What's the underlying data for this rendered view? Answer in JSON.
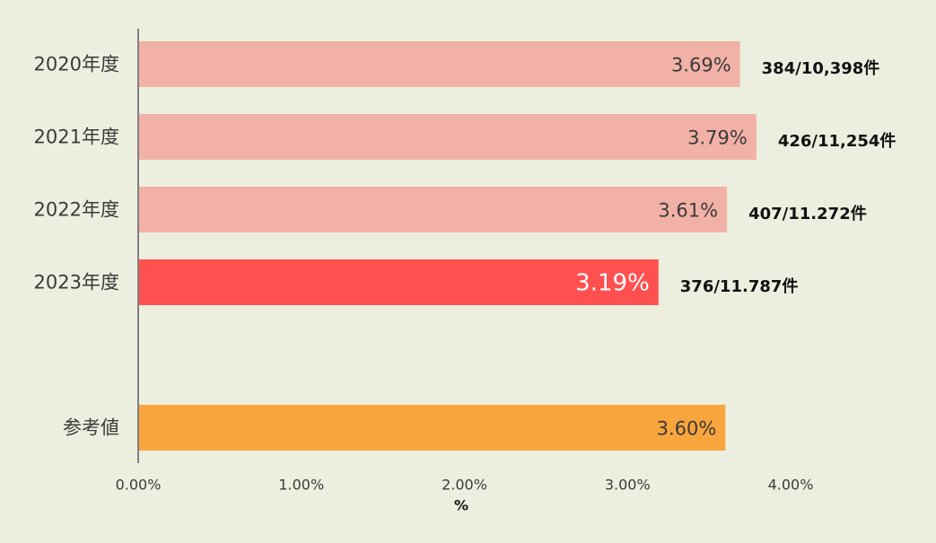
{
  "chart_data": {
    "type": "bar",
    "orientation": "horizontal",
    "categories": [
      "2020年度",
      "2021年度",
      "2022年度",
      "2023年度",
      "参考値"
    ],
    "values": [
      3.69,
      3.79,
      3.61,
      3.19,
      3.6
    ],
    "value_labels": [
      "3.69%",
      "3.79%",
      "3.61%",
      "3.19%",
      "3.60%"
    ],
    "count_labels": [
      "384/10,398件",
      "426/11,254件",
      "407/11.272件",
      "376/11.787件",
      ""
    ],
    "bar_colors": [
      "#f2b1a6",
      "#f2b1a6",
      "#f2b1a6",
      "#ff5050",
      "#f9a53e"
    ],
    "highlight_category": "2023年度",
    "xlabel": "%",
    "ylabel": "",
    "xlim": [
      0,
      4
    ],
    "xticks": [
      "0.00%",
      "1.00%",
      "2.00%",
      "3.00%",
      "4.00%"
    ],
    "grid": false,
    "legend": "none"
  },
  "colors": {
    "background": "#ecefdf",
    "axis": "#7f7f7f",
    "text": "#3a3a3a",
    "highlight_label": "#ffffff"
  }
}
